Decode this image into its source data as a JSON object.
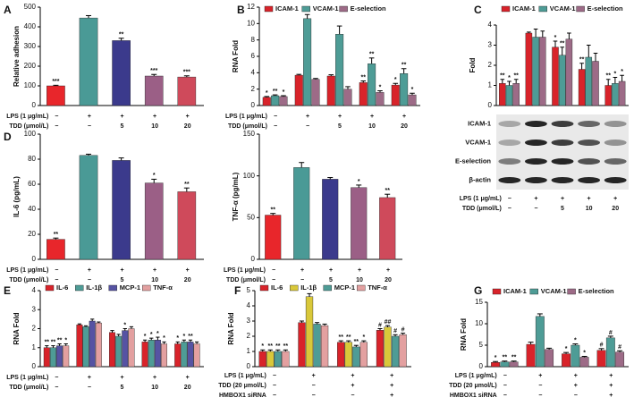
{
  "chart_data": [
    {
      "panel": "A",
      "type": "bar",
      "ylabel": "Relative adhesion",
      "ylim": [
        0,
        500
      ],
      "yticks": [
        0,
        100,
        200,
        300,
        400,
        500
      ],
      "values": [
        100,
        445,
        330,
        150,
        145
      ],
      "errors": [
        3,
        12,
        12,
        8,
        6
      ],
      "colors": [
        "#e8262b",
        "#4a9a96",
        "#3b3a8c",
        "#9b5f86",
        "#cf4a5b"
      ],
      "significance": [
        "***",
        null,
        "**",
        "***",
        "***"
      ],
      "conditions": [
        {
          "label": "LPS (1 μg/mL)",
          "values": [
            "−",
            "+",
            "+",
            "+",
            "+"
          ]
        },
        {
          "label": "TDD (μmol/L)",
          "values": [
            "−",
            "−",
            "5",
            "10",
            "20"
          ]
        }
      ]
    },
    {
      "panel": "B",
      "type": "bar",
      "ylabel": "RNA Fold",
      "ylim": [
        0,
        12
      ],
      "yticks": [
        0,
        2,
        4,
        6,
        8,
        10,
        12
      ],
      "series": [
        {
          "name": "ICAM-1",
          "color": "#d8232a",
          "values": [
            1.0,
            3.7,
            3.6,
            2.8,
            2.5
          ],
          "errors": [
            0.1,
            0.1,
            0.15,
            0.2,
            0.2
          ],
          "significance": [
            "*",
            null,
            null,
            "**",
            "*"
          ]
        },
        {
          "name": "VCAM-1",
          "color": "#4e9c96",
          "values": [
            1.2,
            10.6,
            8.7,
            5.1,
            3.9
          ],
          "errors": [
            0.1,
            0.5,
            1.0,
            0.7,
            0.6
          ],
          "significance": [
            "**",
            null,
            null,
            "**",
            "**"
          ]
        },
        {
          "name": "E-selection",
          "color": "#9d6b87",
          "values": [
            1.1,
            3.2,
            2.0,
            1.6,
            1.3
          ],
          "errors": [
            0.1,
            0.1,
            0.3,
            0.2,
            0.2
          ],
          "significance": [
            "*",
            null,
            null,
            "*",
            "*"
          ]
        }
      ],
      "conditions": [
        {
          "label": "LPS (1 μg/mL)",
          "values": [
            "−",
            "+",
            "+",
            "+",
            "+"
          ]
        },
        {
          "label": "TDD (μmol/L)",
          "values": [
            "−",
            "−",
            "5",
            "10",
            "20"
          ]
        }
      ]
    },
    {
      "panel": "C",
      "type": "bar",
      "ylabel": "Fold",
      "ylim": [
        0,
        4
      ],
      "yticks": [
        0,
        1,
        2,
        3,
        4
      ],
      "series": [
        {
          "name": "ICAM-1",
          "color": "#d8232a",
          "values": [
            1.1,
            3.6,
            2.9,
            1.8,
            1.0
          ],
          "errors": [
            0.2,
            0.05,
            0.3,
            0.3,
            0.3
          ],
          "significance": [
            "**",
            null,
            "*",
            "**",
            "**"
          ]
        },
        {
          "name": "VCAM-1",
          "color": "#4e9c96",
          "values": [
            1.0,
            3.4,
            2.5,
            2.4,
            1.1
          ],
          "errors": [
            0.2,
            0.4,
            0.4,
            0.6,
            0.3
          ],
          "significance": [
            "*",
            null,
            "**",
            null,
            "*"
          ]
        },
        {
          "name": "E-selection",
          "color": "#9d6b87",
          "values": [
            1.1,
            3.4,
            3.3,
            2.2,
            1.2
          ],
          "errors": [
            0.2,
            0.3,
            0.3,
            0.4,
            0.3
          ],
          "significance": [
            "**",
            null,
            null,
            null,
            "*"
          ]
        }
      ],
      "conditions": [
        {
          "label": "LPS (1 μg/mL)",
          "values": [
            "−",
            "+",
            "+",
            "+",
            "+"
          ]
        },
        {
          "label": "TDD (μmol/L)",
          "values": [
            "−",
            "−",
            "5",
            "10",
            "20"
          ]
        }
      ]
    },
    {
      "panel": "D",
      "type": "bar",
      "ylabel": "IL-6 (pg/mL)",
      "ylim": [
        0,
        100
      ],
      "yticks": [
        0,
        20,
        40,
        60,
        80,
        100
      ],
      "values": [
        16,
        83,
        79,
        61,
        54
      ],
      "errors": [
        1,
        1,
        2,
        3,
        3
      ],
      "colors": [
        "#e8262b",
        "#4a9a96",
        "#3b3a8c",
        "#9b5f86",
        "#cf4a5b"
      ],
      "significance": [
        "**",
        null,
        null,
        "*",
        "**"
      ],
      "conditions": [
        {
          "label": "LPS (1 μg/mL)",
          "values": [
            "−",
            "+",
            "+",
            "+",
            "+"
          ]
        },
        {
          "label": "TDD (μmol/L)",
          "values": [
            "−",
            "−",
            "5",
            "10",
            "20"
          ]
        }
      ]
    },
    {
      "type": "bar",
      "ylabel": "TNF-α (pg/mL)",
      "ylim": [
        0,
        150
      ],
      "yticks": [
        0,
        50,
        100,
        150
      ],
      "values": [
        53,
        110,
        96,
        86,
        74
      ],
      "errors": [
        2,
        6,
        2,
        3,
        4
      ],
      "colors": [
        "#e8262b",
        "#4a9a96",
        "#3b3a8c",
        "#9b5f86",
        "#cf4a5b"
      ],
      "significance": [
        "**",
        null,
        null,
        "*",
        "**"
      ],
      "conditions": [
        {
          "label": "LPS (1 μg/mL)",
          "values": [
            "−",
            "+",
            "+",
            "+",
            "+"
          ]
        },
        {
          "label": "TDD (μmol/L)",
          "values": [
            "−",
            "−",
            "5",
            "10",
            "20"
          ]
        }
      ]
    },
    {
      "panel": "E",
      "type": "bar",
      "ylabel": "RNA Fold",
      "ylim": [
        0,
        4
      ],
      "yticks": [
        0,
        1,
        2,
        3,
        4
      ],
      "series": [
        {
          "name": "IL-6",
          "color": "#d8232a",
          "values": [
            1.0,
            2.2,
            1.8,
            1.3,
            1.2
          ],
          "errors": [
            0.1,
            0.05,
            0.1,
            0.1,
            0.1
          ],
          "significance": [
            "**",
            null,
            null,
            "*",
            "*"
          ]
        },
        {
          "name": "IL-1β",
          "color": "#4e9c96",
          "values": [
            1.0,
            2.1,
            1.6,
            1.4,
            1.3
          ],
          "errors": [
            0.1,
            0.05,
            0.1,
            0.1,
            0.1
          ],
          "significance": [
            "**",
            null,
            null,
            "*",
            "*"
          ]
        },
        {
          "name": "MCP-1",
          "color": "#5653a3",
          "values": [
            1.1,
            2.4,
            1.9,
            1.4,
            1.3
          ],
          "errors": [
            0.1,
            0.1,
            0.1,
            0.15,
            0.1
          ],
          "significance": [
            "**",
            null,
            "*",
            "*",
            "**"
          ]
        },
        {
          "name": "TNF-α",
          "color": "#e3a0a0",
          "values": [
            1.1,
            2.3,
            2.0,
            1.2,
            1.2
          ],
          "errors": [
            0.1,
            0.05,
            0.1,
            0.1,
            0.1
          ],
          "significance": [
            "*",
            null,
            null,
            "*",
            null
          ]
        }
      ],
      "conditions": [
        {
          "label": "LPS (1 μg/mL)",
          "values": [
            "−",
            "+",
            "+",
            "+",
            "+"
          ]
        },
        {
          "label": "TDD (μmol/L)",
          "values": [
            "−",
            "−",
            "5",
            "10",
            "20"
          ]
        }
      ]
    },
    {
      "panel": "F",
      "type": "bar",
      "ylabel": "RNA Fold",
      "ylim": [
        0,
        5
      ],
      "yticks": [
        0,
        1,
        2,
        3,
        4,
        5
      ],
      "series": [
        {
          "name": "IL-6",
          "color": "#d8232a",
          "values": [
            1.0,
            2.9,
            1.6,
            2.4
          ],
          "errors": [
            0.1,
            0.1,
            0.1,
            0.1
          ],
          "significance": [
            "*",
            null,
            "**",
            "#"
          ]
        },
        {
          "name": "IL-1β",
          "color": "#d9c83a",
          "values": [
            1.0,
            4.6,
            1.6,
            2.6
          ],
          "errors": [
            0.1,
            0.2,
            0.1,
            0.1
          ],
          "significance": [
            "**",
            null,
            "**",
            "##"
          ]
        },
        {
          "name": "MCP-1",
          "color": "#4e9c96",
          "values": [
            1.0,
            2.8,
            1.3,
            2.0
          ],
          "errors": [
            0.1,
            0.1,
            0.1,
            0.1
          ],
          "significance": [
            "**",
            null,
            "**",
            "#"
          ]
        },
        {
          "name": "TNF-α",
          "color": "#e3a0a0",
          "values": [
            1.0,
            2.7,
            1.6,
            2.1
          ],
          "errors": [
            0.1,
            0.1,
            0.1,
            0.1
          ],
          "significance": [
            "**",
            null,
            "*",
            "#"
          ]
        }
      ],
      "conditions": [
        {
          "label": "LPS (1 μg/mL)",
          "values": [
            "−",
            "+",
            "+",
            "+"
          ]
        },
        {
          "label": "TDD (20 μmol/L)",
          "values": [
            "−",
            "−",
            "+",
            "+"
          ]
        },
        {
          "label": "HMBOX1 siRNA",
          "values": [
            "−",
            "−",
            "−",
            "+"
          ]
        }
      ]
    },
    {
      "panel": "G",
      "type": "bar",
      "ylabel": "RNA Fold",
      "ylim": [
        0,
        15
      ],
      "yticks": [
        0,
        5,
        10,
        15
      ],
      "series": [
        {
          "name": "ICAM-1",
          "color": "#d8232a",
          "values": [
            1.0,
            5.2,
            3.0,
            3.8
          ],
          "errors": [
            0.2,
            0.5,
            0.3,
            0.4
          ],
          "significance": [
            "*",
            null,
            "*",
            "#"
          ]
        },
        {
          "name": "VCAM-1",
          "color": "#4e9c96",
          "values": [
            1.1,
            11.7,
            5.0,
            6.7
          ],
          "errors": [
            0.2,
            0.6,
            0.3,
            0.4
          ],
          "significance": [
            "**",
            null,
            "*",
            "#"
          ]
        },
        {
          "name": "E-selection",
          "color": "#9d6b87",
          "values": [
            1.1,
            4.0,
            2.2,
            3.4
          ],
          "errors": [
            0.2,
            0.3,
            0.2,
            0.3
          ],
          "significance": [
            "**",
            null,
            "*",
            "#"
          ]
        }
      ],
      "conditions": [
        {
          "label": "LPS (1 μg/mL)",
          "values": [
            "−",
            "+",
            "+",
            "+"
          ]
        },
        {
          "label": "TDD (20 μmol/L)",
          "values": [
            "−",
            "−",
            "+",
            "+"
          ]
        },
        {
          "label": "HMBOX1 siRNA",
          "values": [
            "−",
            "−",
            "−",
            "+"
          ]
        }
      ]
    }
  ],
  "blot": {
    "rows": [
      "ICAM-1",
      "VCAM-1",
      "E-selection",
      "β-actin"
    ]
  }
}
